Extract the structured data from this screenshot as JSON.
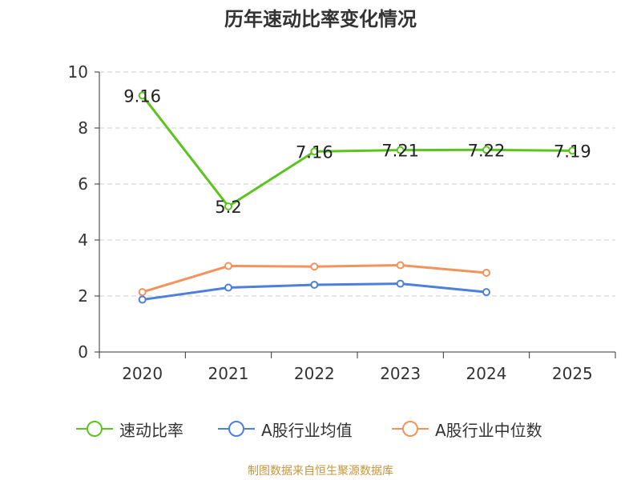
{
  "title": "历年速动比率变化情况",
  "source": "制图数据来自恒生聚源数据库",
  "chart_data": {
    "type": "line",
    "title": "历年速动比率变化情况",
    "categories": [
      "2020",
      "2021",
      "2022",
      "2023",
      "2024",
      "2025"
    ],
    "ylim": [
      0,
      10
    ],
    "yticks": [
      0,
      2,
      4,
      6,
      8,
      10
    ],
    "grid": true,
    "legend_position": "bottom",
    "series": [
      {
        "name": "速动比率",
        "color": "#5cc41e",
        "values": [
          9.16,
          5.2,
          7.16,
          7.21,
          7.22,
          7.19
        ],
        "labels": [
          "9.16",
          "5.2",
          "7.16",
          "7.21",
          "7.22",
          "7.19"
        ]
      },
      {
        "name": "A股行业均值",
        "color": "#4d7fdc",
        "values": [
          1.87,
          2.3,
          2.4,
          2.44,
          2.14,
          null
        ]
      },
      {
        "name": "A股行业中位数",
        "color": "#f4925c",
        "values": [
          2.14,
          3.07,
          3.05,
          3.1,
          2.83,
          null
        ]
      }
    ]
  }
}
